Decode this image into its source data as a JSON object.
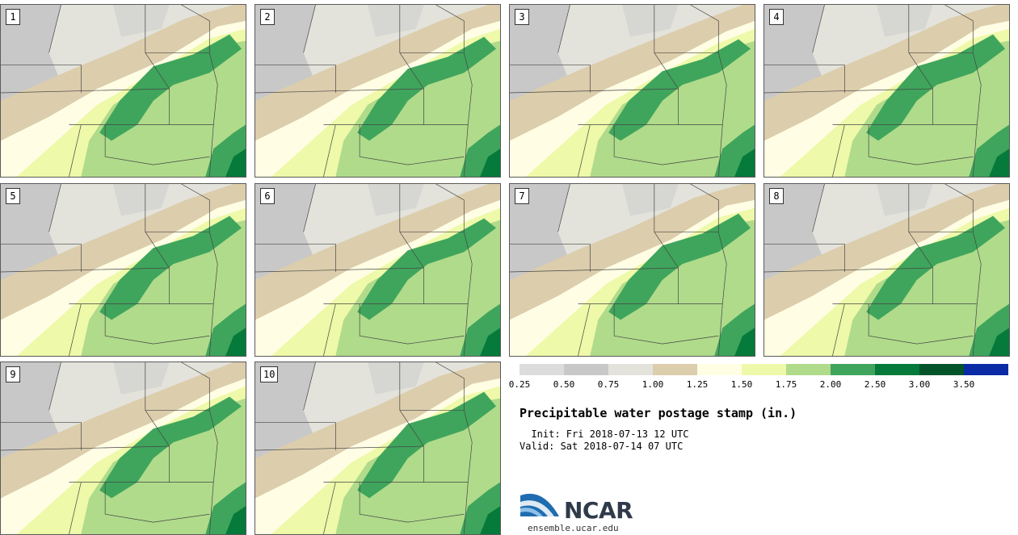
{
  "title": "Precipitable water postage stamp (in.)",
  "init_line": "  Init: Fri 2018-07-13 12 UTC",
  "valid_line": "Valid: Sat 2018-07-14 07 UTC",
  "site": "ensemble.ucar.edu",
  "logo": {
    "text": "NCAR",
    "icon": "ncar-logo-icon"
  },
  "stamps": [
    "1",
    "2",
    "3",
    "4",
    "5",
    "6",
    "7",
    "8",
    "9",
    "10"
  ],
  "colorbar": {
    "ticks": [
      "0.25",
      "0.50",
      "0.75",
      "1.00",
      "1.25",
      "1.50",
      "1.75",
      "2.00",
      "2.50",
      "3.00",
      "3.50"
    ],
    "colors": [
      "#dcdcdc",
      "#c8c8c8",
      "#e3e3dc",
      "#dccdac",
      "#fffee4",
      "#eef9a9",
      "#b0db8b",
      "#3fa55c",
      "#057a3a",
      "#03542a",
      "#0a2aa6"
    ]
  }
}
